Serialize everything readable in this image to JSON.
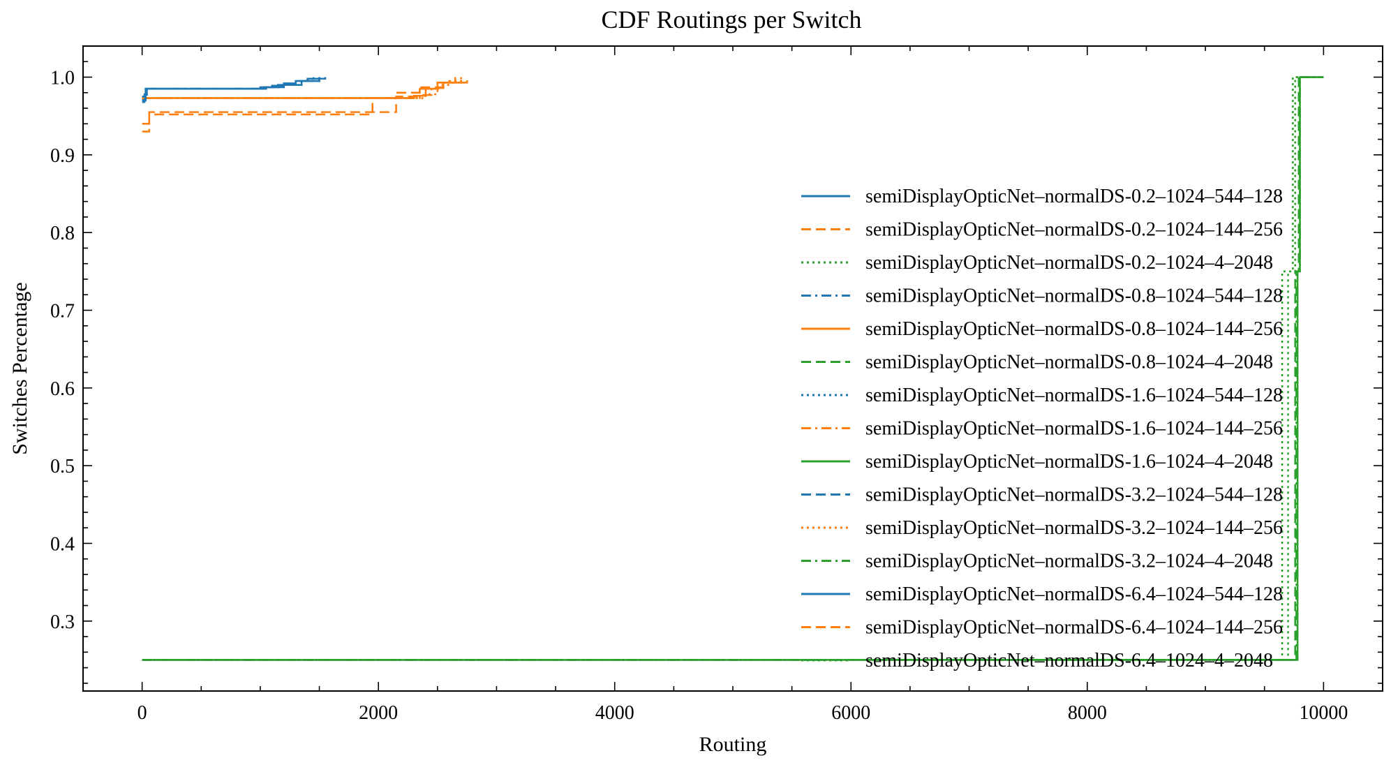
{
  "chart_data": {
    "type": "line",
    "title": "CDF Routings per Switch",
    "xlabel": "Routing",
    "ylabel": "Switches Percentage",
    "xlim": [
      -500,
      10500
    ],
    "ylim": [
      0.21,
      1.04
    ],
    "xticks": [
      0,
      2000,
      4000,
      6000,
      8000,
      10000
    ],
    "xtick_labels": [
      "0",
      "2000",
      "4000",
      "6000",
      "8000",
      "10000"
    ],
    "yticks": [
      0.3,
      0.4,
      0.5,
      0.6,
      0.7,
      0.8,
      0.9,
      1.0
    ],
    "ytick_labels": [
      "0.3",
      "0.4",
      "0.5",
      "0.6",
      "0.7",
      "0.8",
      "0.9",
      "1.0"
    ],
    "grid": false,
    "legend_position": "center-right",
    "series": [
      {
        "name": "semiDisplayOpticNet–normalDS-0.2–1024–544–128",
        "color": "#1f77b4",
        "dash": "solid",
        "x": [
          0,
          20,
          40,
          1000,
          1100,
          1200,
          1300,
          1400,
          1550
        ],
        "y": [
          0.968,
          0.978,
          0.985,
          0.987,
          0.989,
          0.992,
          0.995,
          0.998,
          1.0
        ]
      },
      {
        "name": "semiDisplayOpticNet–normalDS-0.2–1024–144–256",
        "color": "#ff7f0e",
        "dash": "dashed",
        "x": [
          0,
          60,
          1950,
          2150,
          2350,
          2550,
          2750
        ],
        "y": [
          0.93,
          0.952,
          0.973,
          0.98,
          0.987,
          0.993,
          1.0
        ]
      },
      {
        "name": "semiDisplayOpticNet–normalDS-0.2–1024–4–2048",
        "color": "#2ca02c",
        "dash": "dotted",
        "x": [
          0,
          9700,
          9760,
          10000
        ],
        "y": [
          0.25,
          0.75,
          1.0,
          1.0
        ]
      },
      {
        "name": "semiDisplayOpticNet–normalDS-0.8–1024–544–128",
        "color": "#1f77b4",
        "dash": "dashdot",
        "x": [
          0,
          30,
          1000,
          1150,
          1300,
          1500
        ],
        "y": [
          0.97,
          0.985,
          0.987,
          0.99,
          0.995,
          1.0
        ]
      },
      {
        "name": "semiDisplayOpticNet–normalDS-0.8–1024–144–256",
        "color": "#ff7f0e",
        "dash": "solid",
        "x": [
          0,
          2300,
          2400,
          2500,
          2650
        ],
        "y": [
          0.973,
          0.976,
          0.985,
          0.993,
          1.0
        ]
      },
      {
        "name": "semiDisplayOpticNet–normalDS-0.8–1024–4–2048",
        "color": "#2ca02c",
        "dash": "dashed",
        "x": [
          0,
          9760,
          9790,
          10000
        ],
        "y": [
          0.25,
          0.75,
          1.0,
          1.0
        ]
      },
      {
        "name": "semiDisplayOpticNet–normalDS-1.6–1024–544–128",
        "color": "#1f77b4",
        "dash": "dotted",
        "x": [
          0,
          40,
          1050,
          1200,
          1350,
          1500
        ],
        "y": [
          0.975,
          0.985,
          0.987,
          0.99,
          0.995,
          1.0
        ]
      },
      {
        "name": "semiDisplayOpticNet–normalDS-1.6–1024–144–256",
        "color": "#ff7f0e",
        "dash": "dashdot",
        "x": [
          0,
          2350,
          2450,
          2550,
          2700
        ],
        "y": [
          0.973,
          0.977,
          0.986,
          0.993,
          1.0
        ]
      },
      {
        "name": "semiDisplayOpticNet–normalDS-1.6–1024–4–2048",
        "color": "#2ca02c",
        "dash": "solid",
        "x": [
          0,
          9780,
          9800,
          10000
        ],
        "y": [
          0.25,
          0.75,
          1.0,
          1.0
        ]
      },
      {
        "name": "semiDisplayOpticNet–normalDS-3.2–1024–544–128",
        "color": "#1f77b4",
        "dash": "dashed",
        "x": [
          0,
          30,
          1000,
          1150,
          1300,
          1450
        ],
        "y": [
          0.972,
          0.985,
          0.987,
          0.99,
          0.995,
          1.0
        ]
      },
      {
        "name": "semiDisplayOpticNet–normalDS-3.2–1024–144–256",
        "color": "#ff7f0e",
        "dash": "dotted",
        "x": [
          0,
          2400,
          2500,
          2600,
          2700
        ],
        "y": [
          0.973,
          0.978,
          0.99,
          0.995,
          1.0
        ]
      },
      {
        "name": "semiDisplayOpticNet–normalDS-3.2–1024–4–2048",
        "color": "#2ca02c",
        "dash": "dashdot",
        "x": [
          0,
          9770,
          9800,
          10000
        ],
        "y": [
          0.25,
          0.75,
          1.0,
          1.0
        ]
      },
      {
        "name": "semiDisplayOpticNet–normalDS-6.4–1024–544–128",
        "color": "#1f77b4",
        "dash": "solid",
        "x": [
          0,
          30,
          1050,
          1200,
          1350,
          1500
        ],
        "y": [
          0.975,
          0.985,
          0.987,
          0.99,
          0.995,
          1.0
        ]
      },
      {
        "name": "semiDisplayOpticNet–normalDS-6.4–1024–144–256",
        "color": "#ff7f0e",
        "dash": "dashed",
        "x": [
          0,
          60,
          2150,
          2350,
          2550,
          2700
        ],
        "y": [
          0.94,
          0.955,
          0.975,
          0.985,
          0.993,
          1.0
        ]
      },
      {
        "name": "semiDisplayOpticNet–normalDS-6.4–1024–4–2048",
        "color": "#2ca02c",
        "dash": "dotted",
        "x": [
          0,
          9650,
          9740,
          10000
        ],
        "y": [
          0.25,
          0.75,
          1.0,
          1.0
        ]
      }
    ]
  }
}
